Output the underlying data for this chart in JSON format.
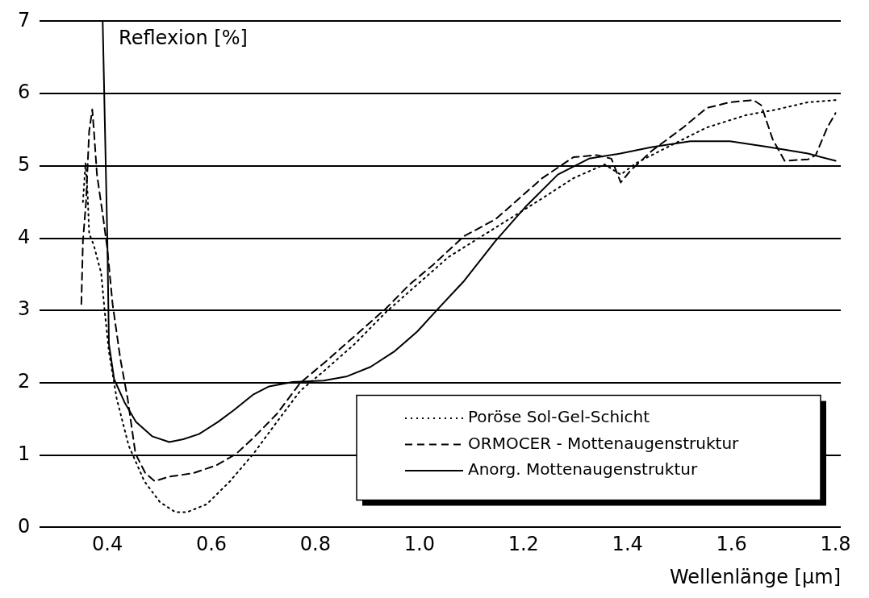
{
  "chart_data": {
    "type": "line",
    "xlabel": "Wellenlänge [µm]",
    "ylabel": "Reflexion [%]",
    "xlim": [
      0.27,
      1.81
    ],
    "xticks": [
      {
        "value": 0.4,
        "label": "0.4"
      },
      {
        "value": 0.6,
        "label": "0.6"
      },
      {
        "value": 0.8,
        "label": "0.8"
      },
      {
        "value": 1.0,
        "label": "1.0"
      },
      {
        "value": 1.2,
        "label": "1.2"
      },
      {
        "value": 1.4,
        "label": "1.4"
      },
      {
        "value": 1.6,
        "label": "1.6"
      },
      {
        "value": 1.8,
        "label": "1.8"
      }
    ],
    "ylim": [
      0,
      7
    ],
    "yticks": [
      0,
      1,
      2,
      3,
      4,
      5,
      6,
      7
    ],
    "grid": "y",
    "legend": "bottom right",
    "marker": "none",
    "series": [
      {
        "name": "Poröse Sol-Gel-Schicht",
        "color": "#000000",
        "line_style": "dotted",
        "x": [
          0.353,
          0.358,
          0.362,
          0.365,
          0.374,
          0.388,
          0.395,
          0.403,
          0.418,
          0.441,
          0.471,
          0.501,
          0.531,
          0.553,
          0.591,
          0.636,
          0.681,
          0.726,
          0.771,
          0.816,
          0.876,
          0.936,
          0.996,
          1.056,
          1.116,
          1.176,
          1.236,
          1.296,
          1.356,
          1.387,
          1.417,
          1.477,
          1.552,
          1.627,
          1.687,
          1.747,
          1.8
        ],
        "values": [
          4.5,
          5.04,
          4.61,
          4.07,
          3.9,
          3.52,
          2.98,
          2.43,
          1.78,
          1.13,
          0.64,
          0.35,
          0.21,
          0.21,
          0.32,
          0.64,
          1.02,
          1.46,
          1.89,
          2.16,
          2.54,
          2.98,
          3.36,
          3.74,
          4.01,
          4.28,
          4.55,
          4.83,
          5.02,
          4.88,
          5.04,
          5.26,
          5.53,
          5.7,
          5.78,
          5.88,
          5.91
        ]
      },
      {
        "name": "ORMOCER - Mottenaugenstruktur",
        "color": "#000000",
        "line_style": "dashed",
        "x": [
          0.35,
          0.353,
          0.359,
          0.365,
          0.371,
          0.374,
          0.38,
          0.392,
          0.4,
          0.41,
          0.425,
          0.439,
          0.454,
          0.473,
          0.491,
          0.518,
          0.565,
          0.61,
          0.648,
          0.681,
          0.726,
          0.771,
          0.816,
          0.876,
          0.936,
          0.981,
          1.026,
          1.086,
          1.146,
          1.176,
          1.236,
          1.296,
          1.341,
          1.369,
          1.387,
          1.405,
          1.447,
          1.507,
          1.552,
          1.597,
          1.642,
          1.657,
          1.679,
          1.702,
          1.747,
          1.762,
          1.784,
          1.8
        ],
        "values": [
          3.09,
          3.96,
          4.5,
          5.48,
          5.78,
          5.5,
          4.88,
          4.28,
          3.85,
          3.09,
          2.33,
          1.78,
          1.02,
          0.75,
          0.64,
          0.7,
          0.75,
          0.86,
          1.02,
          1.24,
          1.57,
          2.0,
          2.27,
          2.65,
          3.03,
          3.36,
          3.63,
          4.03,
          4.26,
          4.45,
          4.83,
          5.12,
          5.15,
          5.1,
          4.77,
          4.93,
          5.21,
          5.53,
          5.8,
          5.88,
          5.91,
          5.84,
          5.37,
          5.07,
          5.09,
          5.15,
          5.53,
          5.73
        ]
      },
      {
        "name": "Anorg. Mottenaugenstruktur",
        "color": "#000000",
        "line_style": "solid",
        "x": [
          0.391,
          0.4,
          0.403,
          0.413,
          0.433,
          0.455,
          0.486,
          0.519,
          0.546,
          0.576,
          0.613,
          0.643,
          0.681,
          0.711,
          0.756,
          0.816,
          0.861,
          0.906,
          0.951,
          0.996,
          1.034,
          1.086,
          1.146,
          1.206,
          1.266,
          1.326,
          1.386,
          1.447,
          1.521,
          1.597,
          1.672,
          1.747,
          1.8
        ],
        "values": [
          7.0,
          3.96,
          2.54,
          2.05,
          1.73,
          1.46,
          1.26,
          1.18,
          1.22,
          1.29,
          1.46,
          1.62,
          1.84,
          1.95,
          2.01,
          2.03,
          2.09,
          2.22,
          2.43,
          2.71,
          3.01,
          3.41,
          3.96,
          4.45,
          4.88,
          5.1,
          5.17,
          5.26,
          5.34,
          5.34,
          5.26,
          5.17,
          5.07
        ]
      }
    ]
  }
}
